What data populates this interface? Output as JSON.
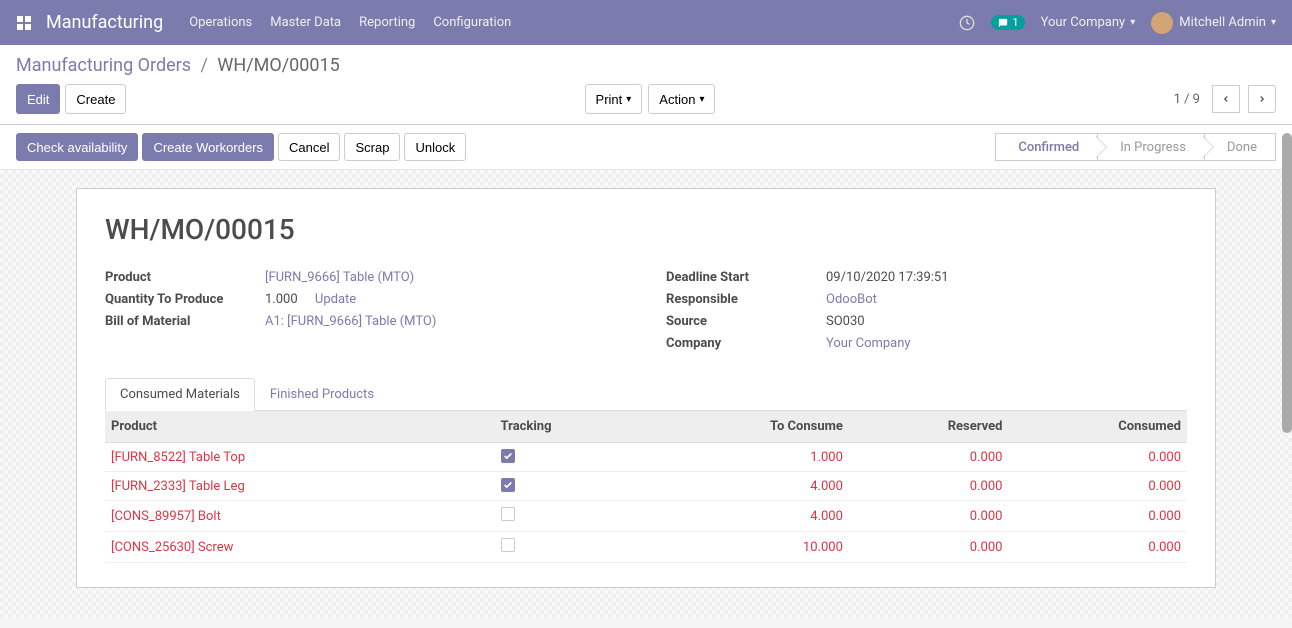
{
  "nav": {
    "brand": "Manufacturing",
    "menus": [
      "Operations",
      "Master Data",
      "Reporting",
      "Configuration"
    ],
    "messaging_count": "1",
    "company": "Your Company",
    "user": "Mitchell Admin"
  },
  "breadcrumb": {
    "parent": "Manufacturing Orders",
    "current": "WH/MO/00015"
  },
  "toolbar": {
    "edit": "Edit",
    "create": "Create",
    "print": "Print",
    "action": "Action",
    "pager": "1 / 9"
  },
  "statusbar": {
    "buttons": {
      "check_availability": "Check availability",
      "create_workorders": "Create Workorders",
      "cancel": "Cancel",
      "scrap": "Scrap",
      "unlock": "Unlock"
    },
    "states": {
      "confirmed": "Confirmed",
      "in_progress": "In Progress",
      "done": "Done"
    },
    "active": "confirmed"
  },
  "sheet": {
    "title": "WH/MO/00015",
    "left": {
      "product_label": "Product",
      "product_value": "[FURN_9666] Table (MTO)",
      "qty_label": "Quantity To Produce",
      "qty_value": "1.000",
      "update": "Update",
      "bom_label": "Bill of Material",
      "bom_value": "A1: [FURN_9666] Table (MTO)"
    },
    "right": {
      "deadline_label": "Deadline Start",
      "deadline_value": "09/10/2020 17:39:51",
      "responsible_label": "Responsible",
      "responsible_value": "OdooBot",
      "source_label": "Source",
      "source_value": "SO030",
      "company_label": "Company",
      "company_value": "Your Company"
    }
  },
  "tabs": {
    "consumed": "Consumed Materials",
    "finished": "Finished Products"
  },
  "table": {
    "headers": {
      "product": "Product",
      "tracking": "Tracking",
      "to_consume": "To Consume",
      "reserved": "Reserved",
      "consumed": "Consumed"
    },
    "rows": [
      {
        "product": "[FURN_8522] Table Top",
        "tracking": true,
        "to_consume": "1.000",
        "reserved": "0.000",
        "consumed": "0.000"
      },
      {
        "product": "[FURN_2333] Table Leg",
        "tracking": true,
        "to_consume": "4.000",
        "reserved": "0.000",
        "consumed": "0.000"
      },
      {
        "product": "[CONS_89957] Bolt",
        "tracking": false,
        "to_consume": "4.000",
        "reserved": "0.000",
        "consumed": "0.000"
      },
      {
        "product": "[CONS_25630] Screw",
        "tracking": false,
        "to_consume": "10.000",
        "reserved": "0.000",
        "consumed": "0.000"
      }
    ]
  },
  "colors": {
    "primary": "#7c7bad",
    "danger": "#dc3545"
  }
}
